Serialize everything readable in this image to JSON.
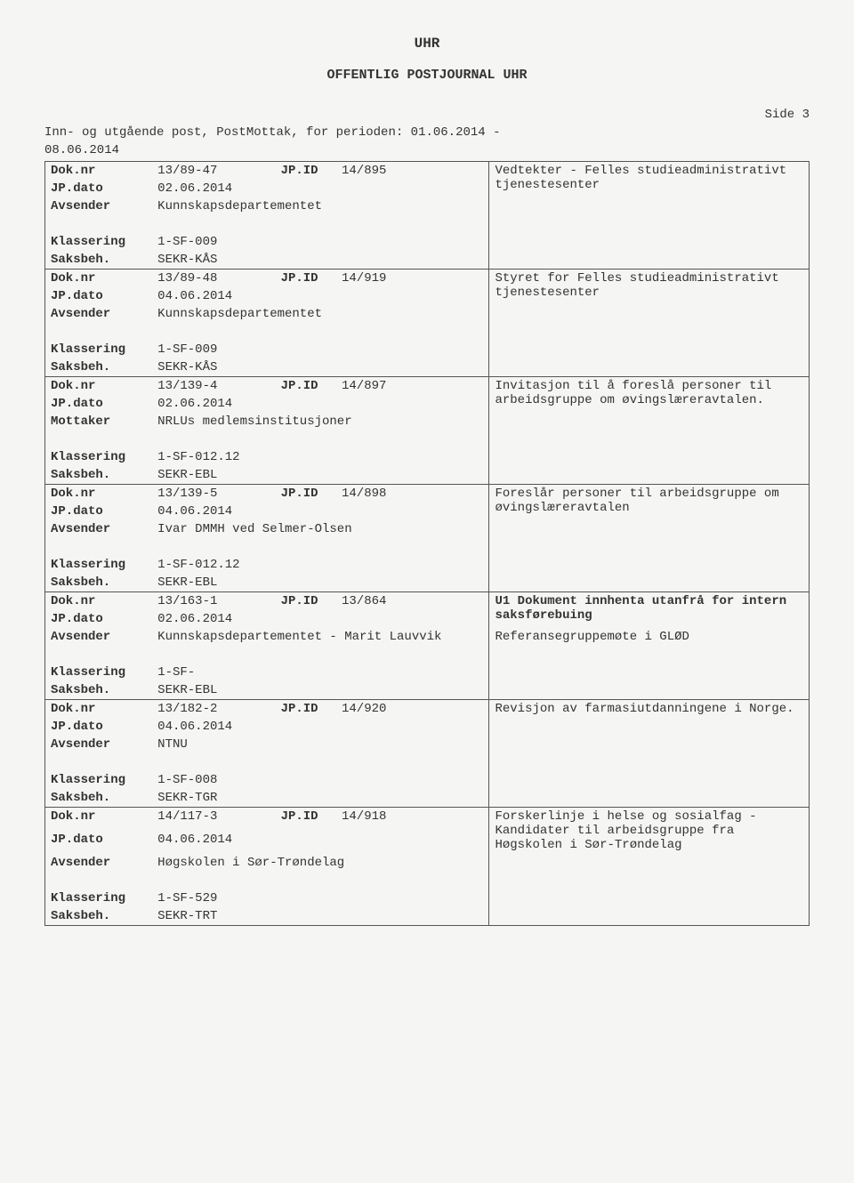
{
  "header": {
    "org": "UHR",
    "title": "OFFENTLIG POSTJOURNAL UHR",
    "side": "Side 3",
    "period_line_1": "Inn- og utgående post, PostMottak, for perioden: 01.06.2014 -",
    "period_line_2": "08.06.2014"
  },
  "labels": {
    "doknr": "Dok.nr",
    "jpdato": "JP.dato",
    "jpid": "JP.ID",
    "avsender": "Avsender",
    "mottaker": "Mottaker",
    "klassering": "Klassering",
    "saksbeh": "Saksbeh."
  },
  "entries": [
    {
      "doknr": "13/89-47",
      "jpid": "14/895",
      "jpdato": "02.06.2014",
      "party_label": "Avsender",
      "party": "Kunnskapsdepartementet",
      "klassering": "1-SF-009",
      "saksbeh": "SEKR-KÅS",
      "desc1": "Vedtekter - Felles studieadministrativt tjenestesenter",
      "desc2": ""
    },
    {
      "doknr": "13/89-48",
      "jpid": "14/919",
      "jpdato": "04.06.2014",
      "party_label": "Avsender",
      "party": "Kunnskapsdepartementet",
      "klassering": "1-SF-009",
      "saksbeh": "SEKR-KÅS",
      "desc1": "Styret for Felles studieadministrativt tjenestesenter",
      "desc2": ""
    },
    {
      "doknr": "13/139-4",
      "jpid": "14/897",
      "jpdato": "02.06.2014",
      "party_label": "Mottaker",
      "party": "NRLUs medlemsinstitusjoner",
      "klassering": "1-SF-012.12",
      "saksbeh": "SEKR-EBL",
      "desc1": "Invitasjon til å foreslå personer til arbeidsgruppe om øvingslæreravtalen.",
      "desc2": ""
    },
    {
      "doknr": "13/139-5",
      "jpid": "14/898",
      "jpdato": "04.06.2014",
      "party_label": "Avsender",
      "party": "Ivar DMMH ved Selmer-Olsen",
      "klassering": "1-SF-012.12",
      "saksbeh": "SEKR-EBL",
      "desc1": "Foreslår personer til arbeidsgruppe om øvingslæreravtalen",
      "desc2": ""
    },
    {
      "doknr": "13/163-1",
      "jpid": "13/864",
      "jpdato": "02.06.2014",
      "party_label": "Avsender",
      "party": "Kunnskapsdepartementet - Marit Lauvvik",
      "klassering": "1-SF-",
      "saksbeh": "SEKR-EBL",
      "desc1": "U1 Dokument innhenta utanfrå for intern saksførebuing",
      "desc1_bold": "true",
      "desc2": "Referansegruppemøte i GLØD"
    },
    {
      "doknr": "13/182-2",
      "jpid": "14/920",
      "jpdato": "04.06.2014",
      "party_label": "Avsender",
      "party": "NTNU",
      "klassering": "1-SF-008",
      "saksbeh": "SEKR-TGR",
      "desc1": "Revisjon av farmasiutdanningene i Norge.",
      "desc2": ""
    },
    {
      "doknr": "14/117-3",
      "jpid": "14/918",
      "jpdato": "04.06.2014",
      "party_label": "Avsender",
      "party": "Høgskolen i Sør-Trøndelag",
      "klassering": "1-SF-529",
      "saksbeh": "SEKR-TRT",
      "desc1": "Forskerlinje i helse og sosialfag - Kandidater til arbeidsgruppe fra Høgskolen i Sør-Trøndelag",
      "desc2": ""
    }
  ]
}
